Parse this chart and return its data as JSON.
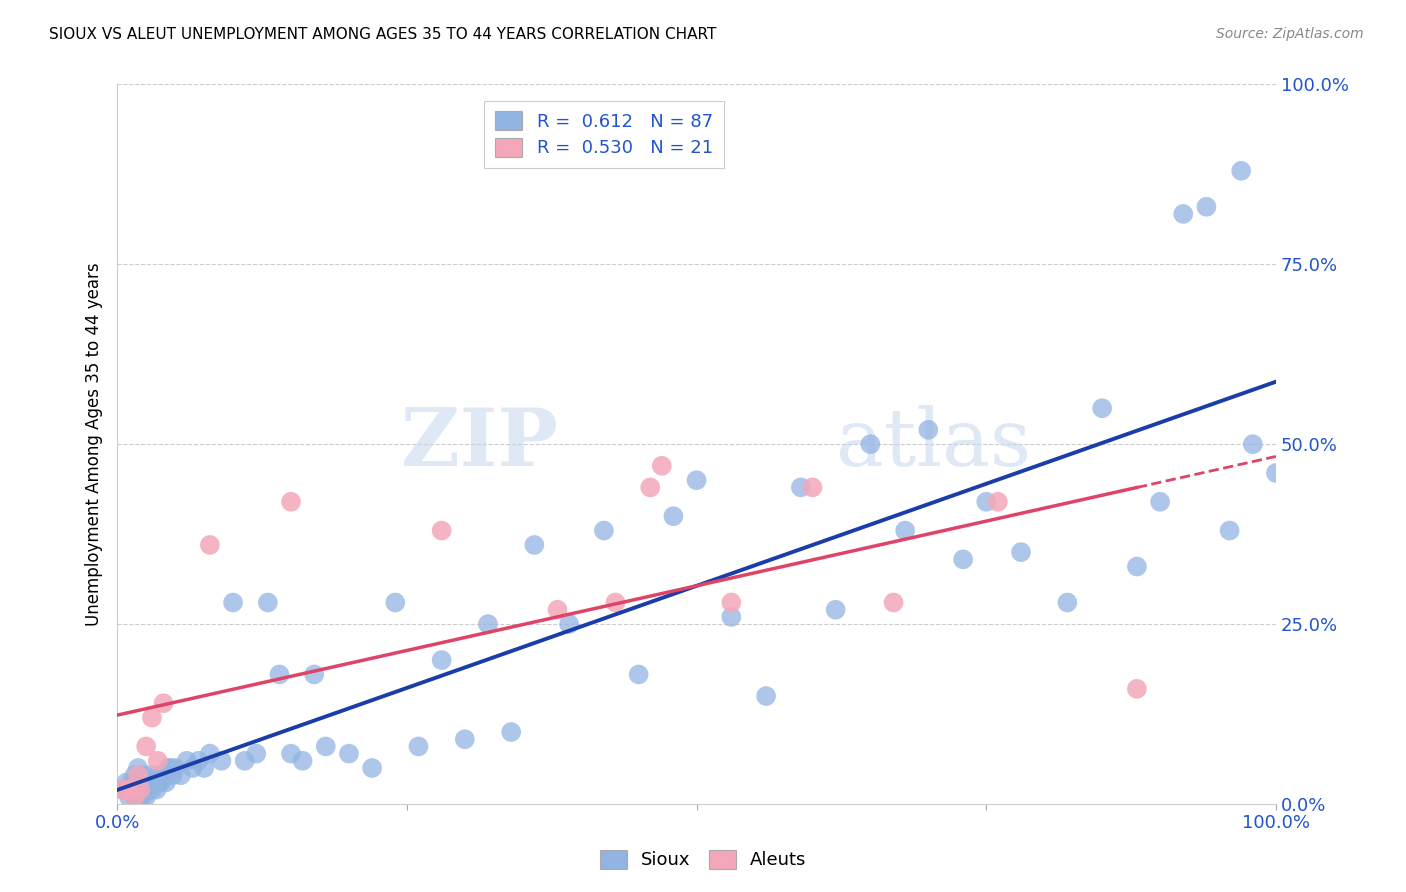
{
  "title": "SIOUX VS ALEUT UNEMPLOYMENT AMONG AGES 35 TO 44 YEARS CORRELATION CHART",
  "source": "Source: ZipAtlas.com",
  "ylabel": "Unemployment Among Ages 35 to 44 years",
  "ytick_labels": [
    "0.0%",
    "25.0%",
    "50.0%",
    "75.0%",
    "100.0%"
  ],
  "ytick_values": [
    0,
    0.25,
    0.5,
    0.75,
    1.0
  ],
  "xtick_labels": [
    "0.0%",
    "100.0%"
  ],
  "xtick_values": [
    0,
    1.0
  ],
  "sioux_R": "0.612",
  "sioux_N": "87",
  "aleut_R": "0.530",
  "aleut_N": "21",
  "sioux_color": "#92B4E3",
  "aleut_color": "#F4A7B9",
  "sioux_line_color": "#1A3DAA",
  "aleut_line_color": "#DD4466",
  "legend_label_sioux": "Sioux",
  "legend_label_aleut": "Aleuts",
  "watermark_zip": "ZIP",
  "watermark_atlas": "atlas",
  "sioux_x": [
    0.005,
    0.008,
    0.01,
    0.01,
    0.012,
    0.013,
    0.015,
    0.015,
    0.016,
    0.017,
    0.018,
    0.018,
    0.019,
    0.02,
    0.02,
    0.021,
    0.022,
    0.022,
    0.023,
    0.024,
    0.025,
    0.025,
    0.026,
    0.027,
    0.028,
    0.03,
    0.032,
    0.034,
    0.035,
    0.036,
    0.038,
    0.04,
    0.042,
    0.044,
    0.046,
    0.048,
    0.05,
    0.055,
    0.06,
    0.065,
    0.07,
    0.075,
    0.08,
    0.09,
    0.1,
    0.11,
    0.12,
    0.13,
    0.14,
    0.15,
    0.16,
    0.17,
    0.18,
    0.2,
    0.22,
    0.24,
    0.26,
    0.28,
    0.3,
    0.32,
    0.34,
    0.36,
    0.39,
    0.42,
    0.45,
    0.48,
    0.5,
    0.53,
    0.56,
    0.59,
    0.62,
    0.65,
    0.68,
    0.7,
    0.73,
    0.75,
    0.78,
    0.82,
    0.85,
    0.88,
    0.9,
    0.92,
    0.94,
    0.96,
    0.97,
    0.98,
    1.0
  ],
  "sioux_y": [
    0.02,
    0.03,
    0.01,
    0.02,
    0.03,
    0.02,
    0.01,
    0.04,
    0.02,
    0.03,
    0.01,
    0.05,
    0.02,
    0.01,
    0.03,
    0.02,
    0.01,
    0.04,
    0.02,
    0.03,
    0.01,
    0.02,
    0.03,
    0.02,
    0.04,
    0.02,
    0.03,
    0.02,
    0.04,
    0.03,
    0.03,
    0.04,
    0.03,
    0.05,
    0.05,
    0.04,
    0.05,
    0.04,
    0.06,
    0.05,
    0.06,
    0.05,
    0.07,
    0.06,
    0.28,
    0.06,
    0.07,
    0.28,
    0.18,
    0.07,
    0.06,
    0.18,
    0.08,
    0.07,
    0.05,
    0.28,
    0.08,
    0.2,
    0.09,
    0.25,
    0.1,
    0.36,
    0.25,
    0.38,
    0.18,
    0.4,
    0.45,
    0.26,
    0.15,
    0.44,
    0.27,
    0.5,
    0.38,
    0.52,
    0.34,
    0.42,
    0.35,
    0.28,
    0.55,
    0.33,
    0.42,
    0.82,
    0.83,
    0.38,
    0.88,
    0.5,
    0.46
  ],
  "aleut_x": [
    0.005,
    0.01,
    0.015,
    0.018,
    0.02,
    0.025,
    0.03,
    0.035,
    0.04,
    0.08,
    0.15,
    0.28,
    0.38,
    0.43,
    0.46,
    0.47,
    0.53,
    0.6,
    0.67,
    0.76,
    0.88
  ],
  "aleut_y": [
    0.02,
    0.02,
    0.01,
    0.04,
    0.02,
    0.08,
    0.12,
    0.06,
    0.14,
    0.36,
    0.42,
    0.38,
    0.27,
    0.28,
    0.44,
    0.47,
    0.28,
    0.44,
    0.28,
    0.42,
    0.16
  ]
}
